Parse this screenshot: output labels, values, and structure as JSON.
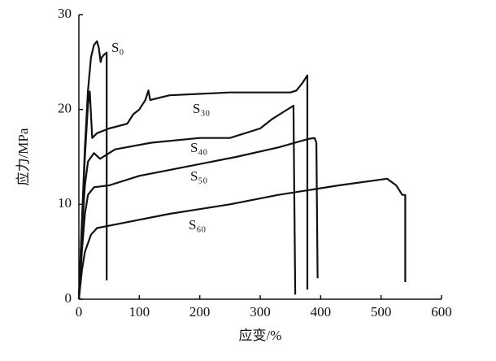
{
  "chart_data": {
    "type": "line",
    "xlabel": "应变/%",
    "ylabel": "应力/MPa",
    "xlim": [
      0,
      600
    ],
    "xticks": [
      0,
      100,
      200,
      300,
      400,
      500,
      600
    ],
    "ylim": [
      0,
      30
    ],
    "yticks": [
      0,
      10,
      20,
      30
    ],
    "series": [
      {
        "name": "S₀",
        "color": "#111111",
        "x": [
          0,
          5,
          10,
          15,
          20,
          25,
          30,
          33,
          36,
          38,
          42,
          46,
          46
        ],
        "values": [
          0,
          8,
          16,
          22,
          25.5,
          26.8,
          27.2,
          26.5,
          25,
          25.5,
          25.8,
          26,
          2
        ]
      },
      {
        "name": "S₃₀",
        "color": "#111111",
        "x": [
          0,
          5,
          10,
          15,
          18,
          22,
          30,
          50,
          80,
          90,
          100,
          110,
          115,
          118,
          150,
          250,
          350,
          360,
          370,
          378,
          378
        ],
        "values": [
          0,
          8,
          15,
          20.5,
          21.9,
          17,
          17.5,
          18,
          18.5,
          19.5,
          20,
          21,
          22,
          21,
          21.5,
          21.8,
          21.8,
          22,
          22.8,
          23.6,
          1
        ]
      },
      {
        "name": "S₄₀",
        "color": "#111111",
        "x": [
          0,
          5,
          10,
          15,
          25,
          35,
          60,
          120,
          200,
          250,
          300,
          320,
          340,
          355,
          358
        ],
        "values": [
          0,
          7,
          12,
          14.5,
          15.4,
          14.8,
          15.8,
          16.5,
          17,
          17,
          18,
          19,
          19.8,
          20.4,
          0.5
        ]
      },
      {
        "name": "S₅₀",
        "color": "#111111",
        "x": [
          0,
          5,
          10,
          15,
          25,
          50,
          100,
          180,
          260,
          330,
          380,
          390,
          393,
          395
        ],
        "values": [
          0,
          5,
          9,
          11,
          11.8,
          12,
          13,
          14,
          15,
          16,
          16.9,
          17,
          16.5,
          2.2
        ]
      },
      {
        "name": "S₆₀",
        "color": "#111111",
        "x": [
          0,
          5,
          10,
          20,
          30,
          70,
          150,
          250,
          330,
          430,
          510,
          525,
          535,
          540,
          540
        ],
        "values": [
          0,
          3,
          5,
          6.8,
          7.5,
          8,
          9,
          10,
          11,
          12,
          12.7,
          12,
          11,
          11,
          1.8
        ]
      }
    ]
  }
}
